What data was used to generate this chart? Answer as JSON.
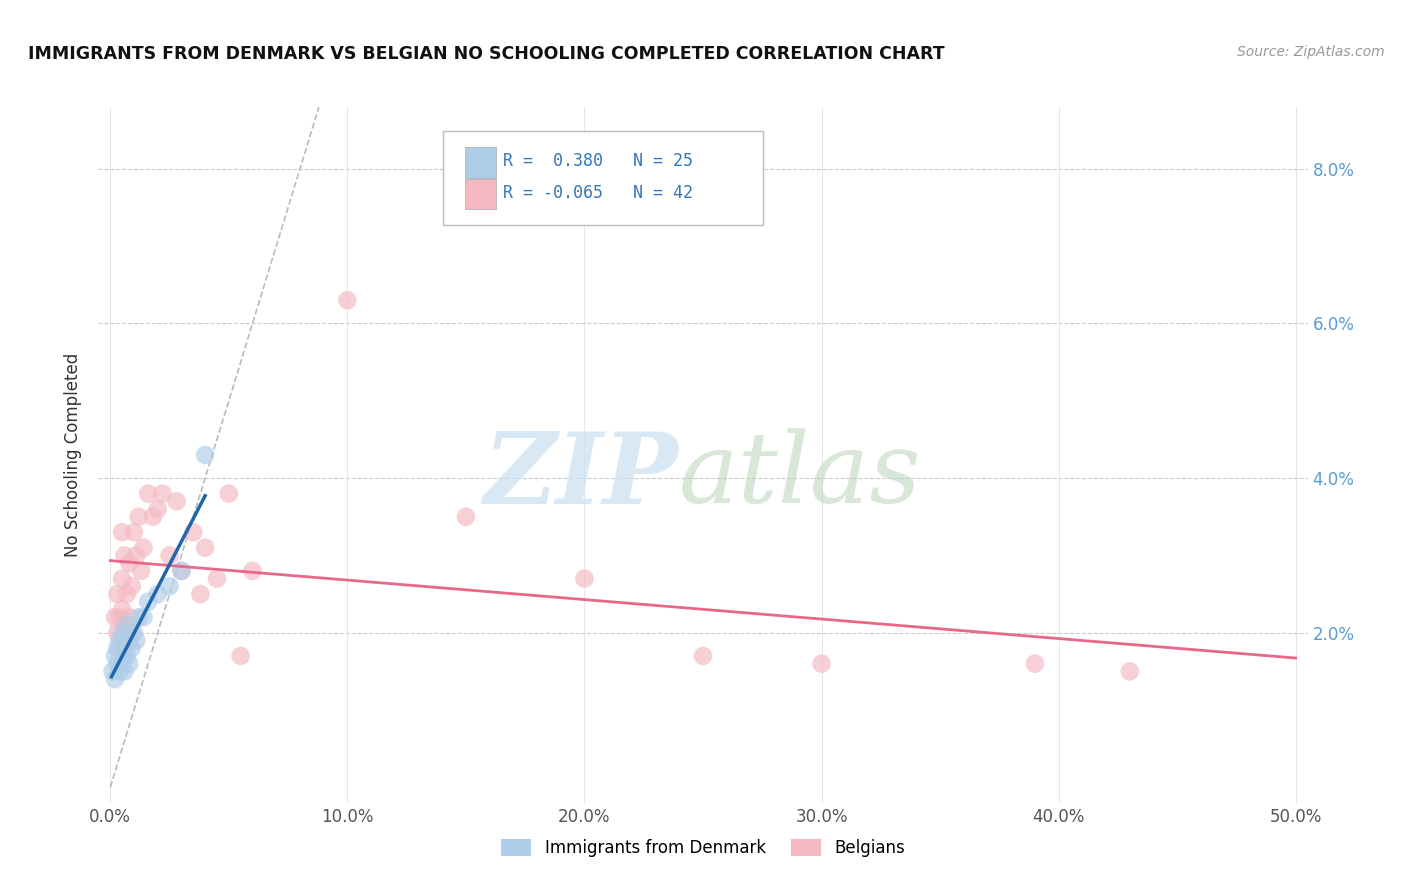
{
  "title": "IMMIGRANTS FROM DENMARK VS BELGIAN NO SCHOOLING COMPLETED CORRELATION CHART",
  "source": "Source: ZipAtlas.com",
  "ylabel": "No Schooling Completed",
  "xlim": [
    0.0,
    0.5
  ],
  "ylim": [
    0.0,
    0.088
  ],
  "xtick_vals": [
    0.0,
    0.1,
    0.2,
    0.3,
    0.4,
    0.5
  ],
  "ytick_vals": [
    0.0,
    0.02,
    0.04,
    0.06,
    0.08
  ],
  "ytick_labels": [
    "",
    "2.0%",
    "4.0%",
    "6.0%",
    "8.0%"
  ],
  "xtick_labels": [
    "0.0%",
    "10.0%",
    "20.0%",
    "30.0%",
    "40.0%",
    "50.0%"
  ],
  "legend_R1": "0.380",
  "legend_N1": "25",
  "legend_R2": "-0.065",
  "legend_N2": "42",
  "color_denmark": "#aecde8",
  "color_belgian": "#f4b8c1",
  "color_line_denmark": "#2166ac",
  "color_line_belgian": "#e8688a",
  "color_diagonal": "#bbbbbb",
  "dk_x": [
    0.001,
    0.002,
    0.002,
    0.003,
    0.003,
    0.004,
    0.004,
    0.005,
    0.005,
    0.006,
    0.006,
    0.007,
    0.007,
    0.008,
    0.008,
    0.009,
    0.01,
    0.011,
    0.012,
    0.014,
    0.016,
    0.02,
    0.025,
    0.03,
    0.04
  ],
  "dk_y": [
    0.015,
    0.017,
    0.014,
    0.016,
    0.018,
    0.015,
    0.019,
    0.016,
    0.02,
    0.015,
    0.018,
    0.017,
    0.021,
    0.016,
    0.019,
    0.018,
    0.02,
    0.019,
    0.022,
    0.022,
    0.024,
    0.025,
    0.026,
    0.028,
    0.043
  ],
  "be_x": [
    0.002,
    0.003,
    0.003,
    0.004,
    0.004,
    0.005,
    0.005,
    0.005,
    0.006,
    0.006,
    0.007,
    0.007,
    0.008,
    0.008,
    0.009,
    0.009,
    0.01,
    0.011,
    0.012,
    0.013,
    0.014,
    0.016,
    0.018,
    0.02,
    0.022,
    0.025,
    0.028,
    0.03,
    0.035,
    0.038,
    0.04,
    0.045,
    0.05,
    0.055,
    0.06,
    0.1,
    0.15,
    0.2,
    0.25,
    0.3,
    0.39,
    0.43
  ],
  "be_y": [
    0.022,
    0.02,
    0.025,
    0.022,
    0.018,
    0.023,
    0.027,
    0.033,
    0.021,
    0.03,
    0.02,
    0.025,
    0.022,
    0.029,
    0.02,
    0.026,
    0.033,
    0.03,
    0.035,
    0.028,
    0.031,
    0.038,
    0.035,
    0.036,
    0.038,
    0.03,
    0.037,
    0.028,
    0.033,
    0.025,
    0.031,
    0.027,
    0.038,
    0.017,
    0.028,
    0.063,
    0.035,
    0.027,
    0.017,
    0.016,
    0.016,
    0.015
  ]
}
